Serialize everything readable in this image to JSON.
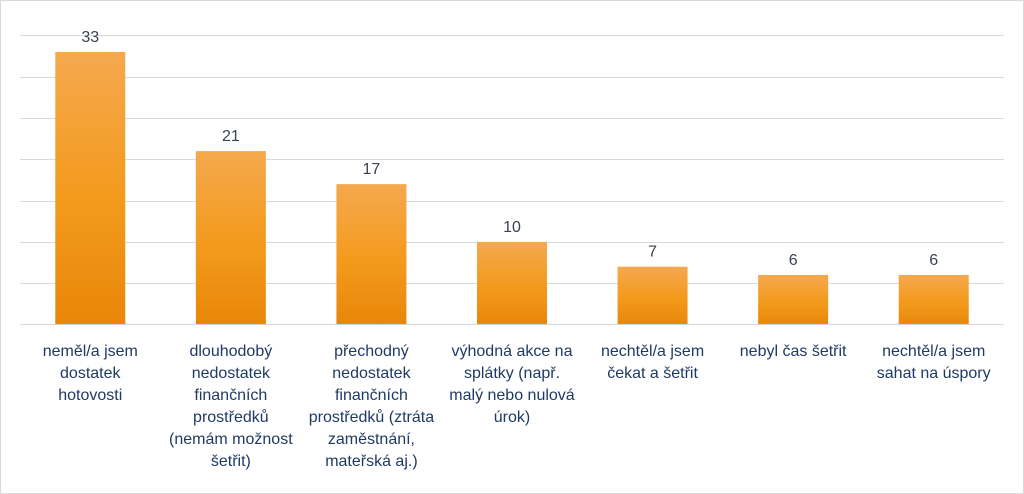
{
  "chart_data": {
    "type": "bar",
    "categories": [
      [
        "neměl/a jsem",
        "dostatek",
        "hotovosti"
      ],
      [
        "dlouhodobý",
        "nedostatek",
        "finančních",
        "prostředků",
        "(nemám možnost",
        "šetřit)"
      ],
      [
        "přechodný",
        "nedostatek",
        "finančních",
        "prostředků (ztráta",
        "zaměstnání,",
        "mateřská aj.)"
      ],
      [
        "výhodná akce na",
        "splátky (např.",
        "malý nebo nulová",
        "úrok)"
      ],
      [
        "nechtěl/a jsem",
        "čekat a šetřit"
      ],
      [
        "nebyl čas šetřit"
      ],
      [
        "nechtěl/a jsem",
        "sahat na úspory"
      ]
    ],
    "values": [
      33,
      21,
      17,
      10,
      7,
      6,
      6
    ],
    "data_labels": [
      "33",
      "21",
      "17",
      "10",
      "7",
      "6",
      "6"
    ],
    "ylim": [
      0,
      35
    ],
    "y_gridline_step": 5,
    "grid": true,
    "legend": "none",
    "colors": {
      "bar_top": "#f5a94e",
      "bar_bottom": "#e8870a",
      "grid": "#d9d9d9",
      "data_label": "#3a4150",
      "category_label": "#1f3a64"
    }
  }
}
